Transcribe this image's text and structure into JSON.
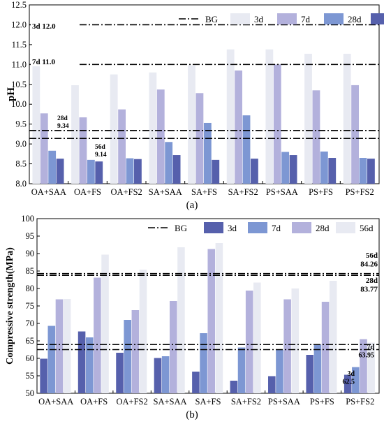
{
  "chart_data": [
    {
      "type": "bar",
      "caption": "(a)",
      "ylabel": "pH",
      "xlabel": "",
      "ylim": [
        8.0,
        12.5
      ],
      "yticks": [
        "8.0",
        "8.5",
        "9.0",
        "9.5",
        "10.0",
        "10.5",
        "11.0",
        "11.5",
        "12.0",
        "12.5"
      ],
      "categories": [
        "OA+SAA",
        "OA+FS",
        "OA+FS2",
        "SA+SAA",
        "SA+FS",
        "SA+FS2",
        "PS+SAA",
        "PS+FS",
        "PS+FS2"
      ],
      "legend": {
        "placement": "top",
        "bg_label": "BG"
      },
      "series": [
        {
          "name": "3d",
          "color": "#e8eaf2",
          "values": [
            11.05,
            10.48,
            10.75,
            10.8,
            10.98,
            11.38,
            11.38,
            11.27,
            11.27
          ]
        },
        {
          "name": "7d",
          "color": "#b3b1dc",
          "values": [
            9.77,
            9.67,
            9.87,
            10.37,
            10.28,
            10.85,
            11.0,
            10.35,
            10.48
          ]
        },
        {
          "name": "28d",
          "color": "#7d97d3",
          "values": [
            8.83,
            8.6,
            8.64,
            9.05,
            9.53,
            9.72,
            8.8,
            8.81,
            8.65
          ]
        },
        {
          "name": "56d",
          "color": "#5660ac",
          "values": [
            8.63,
            8.56,
            8.62,
            8.72,
            8.6,
            8.63,
            8.72,
            8.65,
            8.63
          ]
        }
      ],
      "baselines": [
        {
          "value": 12.0,
          "label_a": "3d",
          "label_b": "12.0"
        },
        {
          "value": 11.0,
          "label_a": "7d",
          "label_b": "11.0"
        },
        {
          "value": 9.34,
          "label_a": "28d",
          "label_b": "9.34"
        },
        {
          "value": 9.14,
          "label_a": "56d",
          "label_b": "9.14"
        }
      ]
    },
    {
      "type": "bar",
      "caption": "(b)",
      "ylabel": "Compressive strength(MPa)",
      "xlabel": "",
      "ylim": [
        50,
        100
      ],
      "yticks": [
        "50",
        "55",
        "60",
        "65",
        "70",
        "75",
        "80",
        "85",
        "90",
        "95",
        "100"
      ],
      "categories": [
        "OA+SAA",
        "OA+FS",
        "OA+FS2",
        "SA+SAA",
        "SA+FS",
        "SA+FS2",
        "PS+SAA",
        "PS+FS",
        "PS+FS2"
      ],
      "legend": {
        "placement": "top",
        "bg_label": "BG"
      },
      "series": [
        {
          "name": "3d",
          "color": "#5660ac",
          "values": [
            59.9,
            67.7,
            61.6,
            60.1,
            56.2,
            53.6,
            54.9,
            61.0,
            55.3
          ]
        },
        {
          "name": "7d",
          "color": "#7d97d3",
          "values": [
            69.3,
            66.0,
            71.0,
            60.6,
            67.2,
            63.1,
            62.4,
            63.9,
            57.5
          ]
        },
        {
          "name": "28d",
          "color": "#b3b1dc",
          "values": [
            76.9,
            83.1,
            73.8,
            76.4,
            91.3,
            79.4,
            76.9,
            76.2,
            65.5
          ]
        },
        {
          "name": "56d",
          "color": "#e8eaf2",
          "values": [
            77.0,
            89.7,
            85.4,
            91.8,
            93.0,
            81.7,
            80.0,
            82.2,
            64.5
          ]
        }
      ],
      "baselines": [
        {
          "value": 84.26,
          "label_a": "56d",
          "label_b": "84.26"
        },
        {
          "value": 83.77,
          "label_a": "28d",
          "label_b": "83.77"
        },
        {
          "value": 63.95,
          "label_a": "7d",
          "label_b": "63.95"
        },
        {
          "value": 62.5,
          "label_a": "3d",
          "label_b": "62.5"
        }
      ]
    }
  ]
}
